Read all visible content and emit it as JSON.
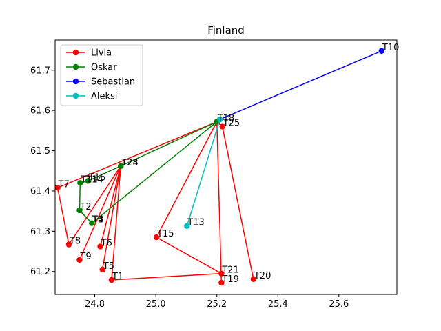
{
  "chart_data": {
    "type": "line",
    "title": "Finland",
    "xlabel": "",
    "ylabel": "",
    "xlim": [
      24.67,
      25.79
    ],
    "ylim": [
      61.143,
      61.775
    ],
    "xticks": [
      "24.8",
      "25.0",
      "25.2",
      "25.4",
      "25.6"
    ],
    "xtick_values": [
      24.8,
      25.0,
      25.2,
      25.4,
      25.6
    ],
    "yticks": [
      "61.2",
      "61.3",
      "61.4",
      "61.5",
      "61.6",
      "61.7"
    ],
    "ytick_values": [
      61.2,
      61.3,
      61.4,
      61.5,
      61.6,
      61.7
    ],
    "grid": false,
    "legend_position": "upper-left",
    "series": [
      {
        "name": "Livia",
        "color": "#ff0000",
        "points": [
          {
            "x": 25.2,
            "y": 61.572
          },
          {
            "x": 24.678,
            "y": 61.408
          },
          {
            "x": 24.715,
            "y": 61.267
          },
          {
            "x": 24.885,
            "y": 61.462
          },
          {
            "x": 24.75,
            "y": 61.229
          },
          {
            "x": 24.885,
            "y": 61.462
          },
          {
            "x": 24.818,
            "y": 61.262
          },
          {
            "x": 24.885,
            "y": 61.462
          },
          {
            "x": 24.825,
            "y": 61.205
          },
          {
            "x": 24.885,
            "y": 61.462
          },
          {
            "x": 24.855,
            "y": 61.179
          },
          {
            "x": 25.215,
            "y": 61.195
          },
          {
            "x": 25.002,
            "y": 61.285
          },
          {
            "x": 25.2,
            "y": 61.572
          },
          {
            "x": 25.215,
            "y": 61.172
          },
          {
            "x": 25.2,
            "y": 61.572
          },
          {
            "x": 25.218,
            "y": 61.56
          },
          {
            "x": 25.32,
            "y": 61.181
          }
        ]
      },
      {
        "name": "Oskar",
        "color": "#008000",
        "points": [
          {
            "x": 25.2,
            "y": 61.572
          },
          {
            "x": 24.885,
            "y": 61.462
          },
          {
            "x": 24.778,
            "y": 61.425
          },
          {
            "x": 24.752,
            "y": 61.42
          },
          {
            "x": 24.75,
            "y": 61.352
          },
          {
            "x": 24.79,
            "y": 61.32
          },
          {
            "x": 25.2,
            "y": 61.572
          }
        ]
      },
      {
        "name": "Sebastian",
        "color": "#0000ff",
        "points": [
          {
            "x": 25.21,
            "y": 61.578
          },
          {
            "x": 25.74,
            "y": 61.748
          }
        ]
      },
      {
        "name": "Aleksi",
        "color": "#00bfbf",
        "points": [
          {
            "x": 25.21,
            "y": 61.578
          },
          {
            "x": 25.102,
            "y": 61.313
          }
        ]
      }
    ],
    "annotations": [
      {
        "text": "T10",
        "x": 25.74,
        "y": 61.748
      },
      {
        "text": "T18",
        "x": 25.2,
        "y": 61.572
      },
      {
        "text": "T25",
        "x": 25.218,
        "y": 61.56
      },
      {
        "text": "T24",
        "x": 24.885,
        "y": 61.462
      },
      {
        "text": "T23",
        "x": 24.885,
        "y": 61.462
      },
      {
        "text": "T11",
        "x": 24.752,
        "y": 61.42
      },
      {
        "text": "T14",
        "x": 24.77,
        "y": 61.42
      },
      {
        "text": "T16",
        "x": 24.778,
        "y": 61.425
      },
      {
        "text": "T7",
        "x": 24.678,
        "y": 61.408
      },
      {
        "text": "T2",
        "x": 24.75,
        "y": 61.352
      },
      {
        "text": "T4",
        "x": 24.79,
        "y": 61.32
      },
      {
        "text": "T3",
        "x": 24.79,
        "y": 61.32
      },
      {
        "text": "T13",
        "x": 25.102,
        "y": 61.313
      },
      {
        "text": "T15",
        "x": 25.002,
        "y": 61.285
      },
      {
        "text": "T8",
        "x": 24.715,
        "y": 61.267
      },
      {
        "text": "T6",
        "x": 24.818,
        "y": 61.262
      },
      {
        "text": "T9",
        "x": 24.75,
        "y": 61.229
      },
      {
        "text": "T5",
        "x": 24.825,
        "y": 61.205
      },
      {
        "text": "T21",
        "x": 25.215,
        "y": 61.195
      },
      {
        "text": "T1",
        "x": 24.855,
        "y": 61.179
      },
      {
        "text": "T20",
        "x": 25.32,
        "y": 61.181
      },
      {
        "text": "T19",
        "x": 25.215,
        "y": 61.172
      }
    ]
  }
}
